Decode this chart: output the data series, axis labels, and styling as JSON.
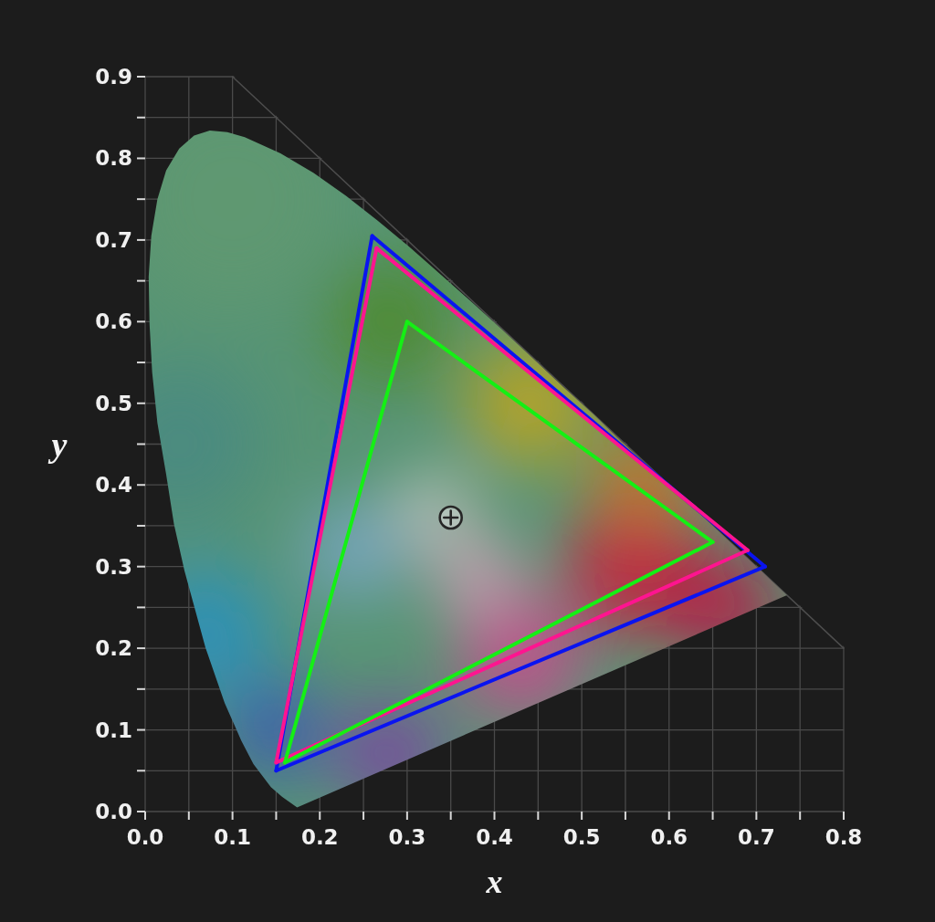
{
  "chart_data": {
    "type": "line",
    "xlabel": "x",
    "ylabel": "y",
    "xlim": [
      0,
      0.8
    ],
    "ylim": [
      0,
      0.9
    ],
    "xticks": [
      {
        "value": 0,
        "label": "0.0"
      },
      {
        "value": 0.05,
        "label": null
      },
      0.1,
      {
        "value": 0.15,
        "label": null
      },
      0.2,
      {
        "value": 0.25,
        "label": null
      },
      0.3,
      {
        "value": 0.35,
        "label": null
      },
      0.4,
      {
        "value": 0.45,
        "label": null
      },
      0.5,
      {
        "value": 0.55,
        "label": null
      },
      0.6,
      {
        "value": 0.65,
        "label": null
      },
      0.7,
      {
        "value": 0.75,
        "label": null
      },
      0.8
    ],
    "yticks": [
      {
        "value": 0,
        "label": "0.0"
      },
      {
        "value": 0.05,
        "label": null
      },
      0.1,
      {
        "value": 0.15,
        "label": null
      },
      0.2,
      {
        "value": 0.25,
        "label": null
      },
      0.3,
      {
        "value": 0.35,
        "label": null
      },
      0.4,
      {
        "value": 0.45,
        "label": null
      },
      0.5,
      {
        "value": 0.55,
        "label": null
      },
      0.6,
      {
        "value": 0.65,
        "label": null
      },
      0.7,
      {
        "value": 0.75,
        "label": null
      },
      0.8,
      {
        "value": 0.85,
        "label": null
      },
      0.9
    ],
    "grid": true,
    "series": [
      {
        "color": "#4d4d4d",
        "x": [
          0.1,
          0.8
        ],
        "values": [
          0.9,
          0.2
        ]
      },
      {
        "type": "area",
        "color": "#579474",
        "x": [
          0.174,
          0.157,
          0.144,
          0.124,
          0.11,
          0.091,
          0.069,
          0.045,
          0.033,
          0.024,
          0.014,
          0.008,
          0.005,
          0.004,
          0.007,
          0.014,
          0.024,
          0.039,
          0.056,
          0.074,
          0.094,
          0.114,
          0.155,
          0.193,
          0.23,
          0.266,
          0.302,
          0.337,
          0.373,
          0.409,
          0.444,
          0.479,
          0.513,
          0.545,
          0.575,
          0.603,
          0.627,
          0.666,
          0.692,
          0.708,
          0.719,
          0.726,
          0.735
        ],
        "values": [
          0.005,
          0.018,
          0.03,
          0.058,
          0.087,
          0.133,
          0.201,
          0.295,
          0.352,
          0.413,
          0.476,
          0.538,
          0.597,
          0.655,
          0.705,
          0.75,
          0.785,
          0.812,
          0.828,
          0.834,
          0.832,
          0.826,
          0.806,
          0.782,
          0.754,
          0.724,
          0.692,
          0.659,
          0.625,
          0.59,
          0.555,
          0.52,
          0.487,
          0.454,
          0.424,
          0.397,
          0.373,
          0.334,
          0.308,
          0.292,
          0.281,
          0.274,
          0.265
        ]
      },
      {
        "color": "#0a14f0",
        "x": [
          0.26,
          0.71
        ],
        "values": [
          0.705,
          0.3
        ]
      },
      {
        "color": "#0a14f0",
        "x": [
          0.71,
          0.15
        ],
        "values": [
          0.3,
          0.05
        ]
      },
      {
        "color": "#0a14f0",
        "x": [
          0.15,
          0.26
        ],
        "values": [
          0.05,
          0.705
        ]
      },
      {
        "color": "#ff1490",
        "x": [
          0.265,
          0.69
        ],
        "values": [
          0.69,
          0.32
        ]
      },
      {
        "color": "#ff1490",
        "x": [
          0.69,
          0.15
        ],
        "values": [
          0.32,
          0.06
        ]
      },
      {
        "color": "#ff1490",
        "x": [
          0.15,
          0.265
        ],
        "values": [
          0.06,
          0.69
        ]
      },
      {
        "color": "#14f014",
        "x": [
          0.3,
          0.65
        ],
        "values": [
          0.6,
          0.33
        ]
      },
      {
        "color": "#14f014",
        "x": [
          0.65,
          0.16
        ],
        "values": [
          0.33,
          0.06
        ]
      },
      {
        "color": "#14f014",
        "x": [
          0.16,
          0.3
        ],
        "values": [
          0.06,
          0.6
        ]
      },
      {
        "type": "scatter",
        "marker": "circle",
        "color": "#262626",
        "x": [
          0.35
        ],
        "values": [
          0.36
        ]
      }
    ]
  }
}
